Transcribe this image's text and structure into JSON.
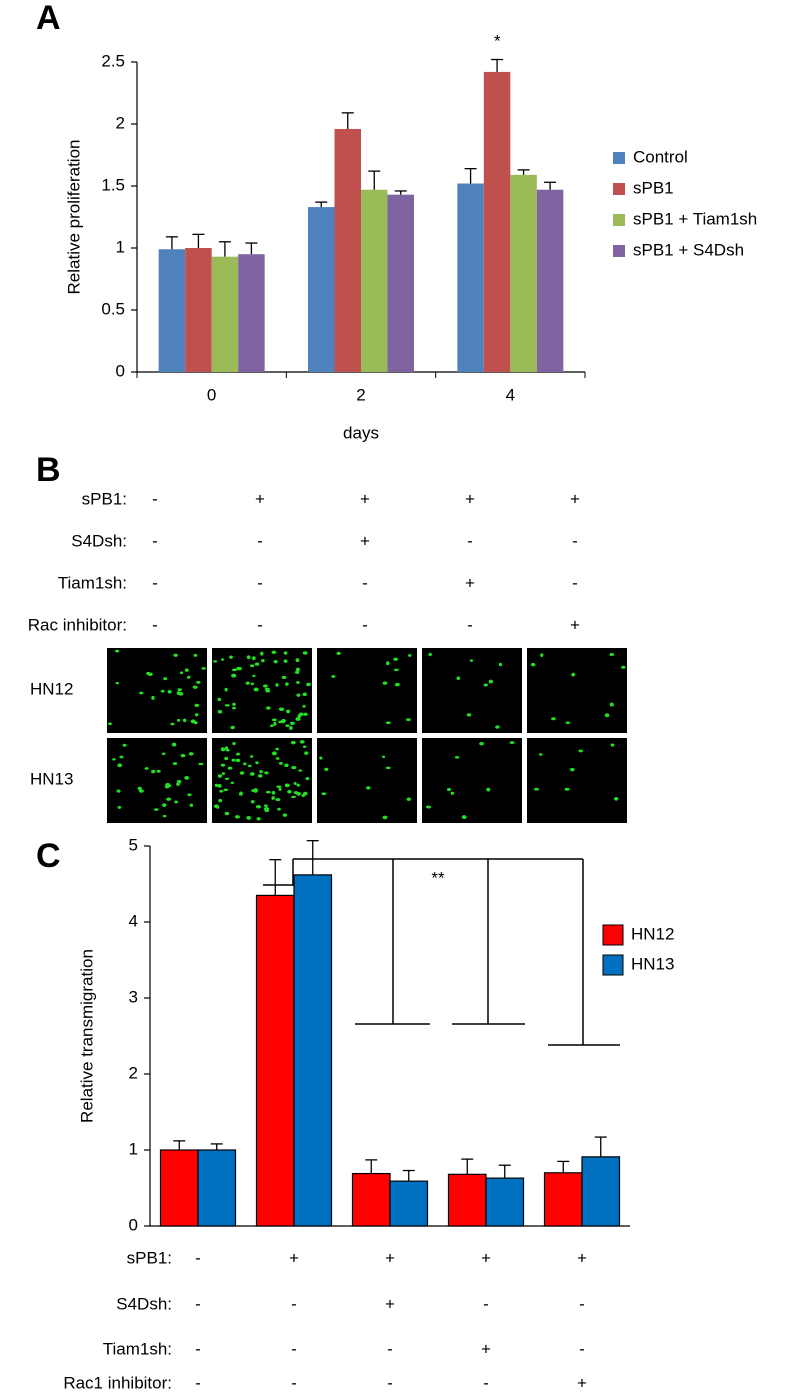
{
  "chart_data": [
    {
      "type": "bar",
      "panel": "A",
      "ylabel": "Relative proliferation",
      "xlabel": "days",
      "annotation": "*",
      "categories": [
        "0",
        "2",
        "4"
      ],
      "ylim": [
        0,
        2.5
      ],
      "yticks": [
        0,
        0.5,
        1,
        1.5,
        2,
        2.5
      ],
      "series": [
        {
          "name": "Control",
          "color": "#4f81bd",
          "values": [
            0.99,
            1.33,
            1.52
          ],
          "errors": [
            0.1,
            0.04,
            0.12
          ]
        },
        {
          "name": "sPB1",
          "color": "#c0504d",
          "values": [
            1.0,
            1.96,
            2.42
          ],
          "errors": [
            0.11,
            0.13,
            0.1
          ]
        },
        {
          "name": "sPB1 + Tiam1sh",
          "color": "#9bbb59",
          "values": [
            0.93,
            1.47,
            1.59
          ],
          "errors": [
            0.12,
            0.15,
            0.04
          ]
        },
        {
          "name": "sPB1 + S4Dsh",
          "color": "#8064a2",
          "values": [
            0.95,
            1.43,
            1.47
          ],
          "errors": [
            0.09,
            0.03,
            0.06
          ]
        }
      ]
    },
    {
      "type": "bar",
      "panel": "C",
      "ylabel": "Relative transmigration",
      "annotation": "**",
      "categories": [
        null,
        null,
        null,
        null,
        null
      ],
      "ylim": [
        0,
        5
      ],
      "yticks": [
        0,
        1,
        2,
        3,
        4,
        5
      ],
      "series": [
        {
          "name": "HN12",
          "color": "#ff0000",
          "values": [
            1.0,
            4.35,
            0.69,
            0.68,
            0.7
          ],
          "errors": [
            0.12,
            0.47,
            0.18,
            0.2,
            0.15
          ]
        },
        {
          "name": "HN13",
          "color": "#0070c0",
          "values": [
            1.0,
            4.62,
            0.59,
            0.63,
            0.91
          ],
          "errors": [
            0.08,
            0.45,
            0.14,
            0.17,
            0.26
          ]
        }
      ],
      "conditions": [
        {
          "label": "sPB1:",
          "values": [
            "-",
            "+",
            "+",
            "+",
            "+"
          ]
        },
        {
          "label": "S4Dsh:",
          "values": [
            "-",
            "-",
            "+",
            "-",
            "-"
          ]
        },
        {
          "label": "Tiam1sh:",
          "values": [
            "-",
            "-",
            "-",
            "+",
            "-"
          ]
        },
        {
          "label": "Rac1 inhibitor:",
          "values": [
            "-",
            "-",
            "-",
            "-",
            "+"
          ]
        }
      ]
    }
  ],
  "panel_b": {
    "panel": "B",
    "conditions": [
      {
        "label": "sPB1:",
        "values": [
          "-",
          "+",
          "+",
          "+",
          "+"
        ]
      },
      {
        "label": "S4Dsh:",
        "values": [
          "-",
          "-",
          "+",
          "-",
          "-"
        ]
      },
      {
        "label": "Tiam1sh:",
        "values": [
          "-",
          "-",
          "-",
          "+",
          "-"
        ]
      },
      {
        "label": "Rac inhibitor:",
        "values": [
          "-",
          "-",
          "-",
          "-",
          "+"
        ]
      }
    ],
    "image_rows": [
      "HN12",
      "HN13"
    ]
  }
}
